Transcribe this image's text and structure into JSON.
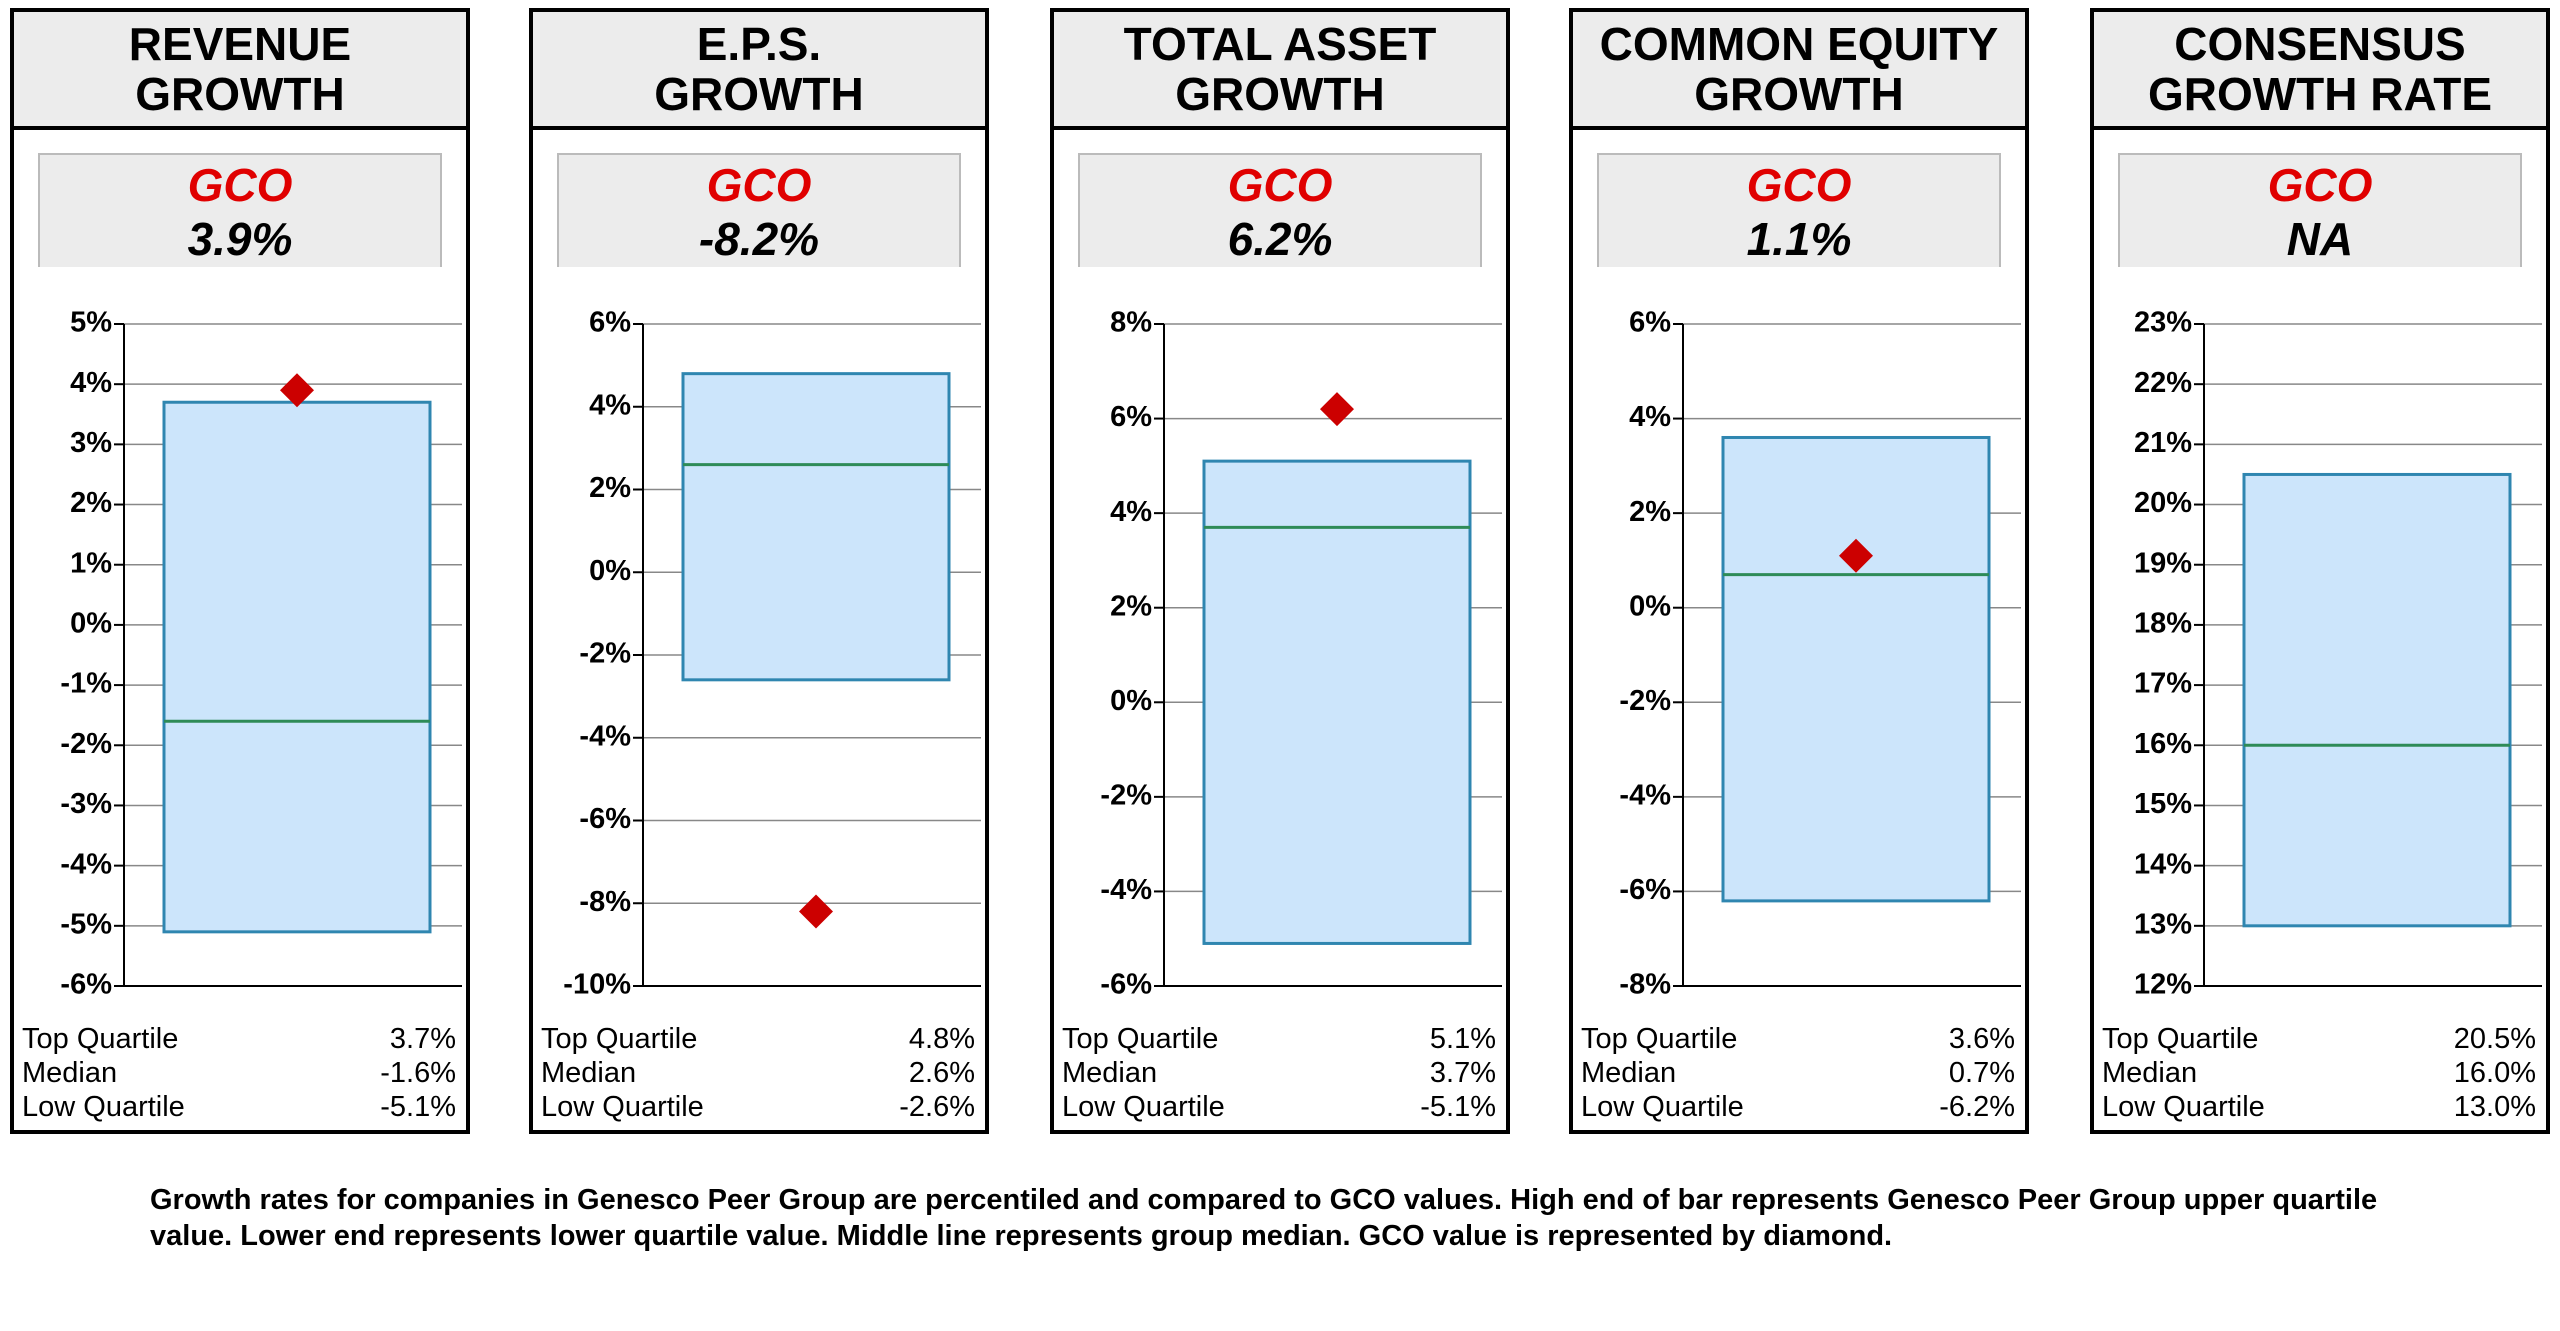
{
  "chart_data": [
    {
      "type": "box",
      "title": "REVENUE\nGROWTH",
      "company": "GCO",
      "value": 3.9,
      "value_label": "3.9%",
      "ylim": [
        -6,
        5
      ],
      "yticks": [
        {
          "value": -6,
          "label": "-6%"
        },
        {
          "value": -5,
          "label": "-5%"
        },
        {
          "value": -4,
          "label": "-4%"
        },
        {
          "value": -3,
          "label": "-3%"
        },
        {
          "value": -2,
          "label": "-2%"
        },
        {
          "value": -1,
          "label": "-1%"
        },
        {
          "value": 0,
          "label": "0%"
        },
        {
          "value": 1,
          "label": "1%"
        },
        {
          "value": 2,
          "label": "2%"
        },
        {
          "value": 3,
          "label": "3%"
        },
        {
          "value": 4,
          "label": "4%"
        },
        {
          "value": 5,
          "label": "5%"
        }
      ],
      "stats": [
        {
          "label": "Top Quartile",
          "value": 3.7,
          "value_label": "3.7%"
        },
        {
          "label": "Median",
          "value": -1.6,
          "value_label": "-1.6%"
        },
        {
          "label": "Low Quartile",
          "value": -5.1,
          "value_label": "-5.1%"
        }
      ]
    },
    {
      "type": "box",
      "title": "E.P.S.\nGROWTH",
      "company": "GCO",
      "value": -8.2,
      "value_label": "-8.2%",
      "ylim": [
        -10,
        6
      ],
      "yticks": [
        {
          "value": -10,
          "label": "-10%"
        },
        {
          "value": -8,
          "label": "-8%"
        },
        {
          "value": -6,
          "label": "-6%"
        },
        {
          "value": -4,
          "label": "-4%"
        },
        {
          "value": -2,
          "label": "-2%"
        },
        {
          "value": 0,
          "label": "0%"
        },
        {
          "value": 2,
          "label": "2%"
        },
        {
          "value": 4,
          "label": "4%"
        },
        {
          "value": 6,
          "label": "6%"
        }
      ],
      "stats": [
        {
          "label": "Top Quartile",
          "value": 4.8,
          "value_label": "4.8%"
        },
        {
          "label": "Median",
          "value": 2.6,
          "value_label": "2.6%"
        },
        {
          "label": "Low Quartile",
          "value": -2.6,
          "value_label": "-2.6%"
        }
      ]
    },
    {
      "type": "box",
      "title": "TOTAL ASSET\nGROWTH",
      "company": "GCO",
      "value": 6.2,
      "value_label": "6.2%",
      "ylim": [
        -6,
        8
      ],
      "yticks": [
        {
          "value": -6,
          "label": "-6%"
        },
        {
          "value": -4,
          "label": "-4%"
        },
        {
          "value": -2,
          "label": "-2%"
        },
        {
          "value": 0,
          "label": "0%"
        },
        {
          "value": 2,
          "label": "2%"
        },
        {
          "value": 4,
          "label": "4%"
        },
        {
          "value": 6,
          "label": "6%"
        },
        {
          "value": 8,
          "label": "8%"
        }
      ],
      "stats": [
        {
          "label": "Top Quartile",
          "value": 5.1,
          "value_label": "5.1%"
        },
        {
          "label": "Median",
          "value": 3.7,
          "value_label": "3.7%"
        },
        {
          "label": "Low Quartile",
          "value": -5.1,
          "value_label": "-5.1%"
        }
      ]
    },
    {
      "type": "box",
      "title": "COMMON EQUITY\nGROWTH",
      "company": "GCO",
      "value": 1.1,
      "value_label": "1.1%",
      "ylim": [
        -8,
        6
      ],
      "yticks": [
        {
          "value": -8,
          "label": "-8%"
        },
        {
          "value": -6,
          "label": "-6%"
        },
        {
          "value": -4,
          "label": "-4%"
        },
        {
          "value": -2,
          "label": "-2%"
        },
        {
          "value": 0,
          "label": "0%"
        },
        {
          "value": 2,
          "label": "2%"
        },
        {
          "value": 4,
          "label": "4%"
        },
        {
          "value": 6,
          "label": "6%"
        }
      ],
      "stats": [
        {
          "label": "Top Quartile",
          "value": 3.6,
          "value_label": "3.6%"
        },
        {
          "label": "Median",
          "value": 0.7,
          "value_label": "0.7%"
        },
        {
          "label": "Low Quartile",
          "value": -6.2,
          "value_label": "-6.2%"
        }
      ]
    },
    {
      "type": "box",
      "title": "CONSENSUS\nGROWTH RATE",
      "company": "GCO",
      "value": null,
      "value_label": "NA",
      "ylim": [
        12,
        23
      ],
      "yticks": [
        {
          "value": 12,
          "label": "12%"
        },
        {
          "value": 13,
          "label": "13%"
        },
        {
          "value": 14,
          "label": "14%"
        },
        {
          "value": 15,
          "label": "15%"
        },
        {
          "value": 16,
          "label": "16%"
        },
        {
          "value": 17,
          "label": "17%"
        },
        {
          "value": 18,
          "label": "18%"
        },
        {
          "value": 19,
          "label": "19%"
        },
        {
          "value": 20,
          "label": "20%"
        },
        {
          "value": 21,
          "label": "21%"
        },
        {
          "value": 22,
          "label": "22%"
        },
        {
          "value": 23,
          "label": "23%"
        }
      ],
      "stats": [
        {
          "label": "Top Quartile",
          "value": 20.5,
          "value_label": "20.5%"
        },
        {
          "label": "Median",
          "value": 16.0,
          "value_label": "16.0%"
        },
        {
          "label": "Low Quartile",
          "value": 13.0,
          "value_label": "13.0%"
        }
      ]
    }
  ],
  "footnote": "Growth rates for companies in Genesco Peer Group are percentiled and compared to GCO values. High end of bar represents Genesco Peer Group upper quartile value. Lower end represents lower quartile value. Middle line represents group median. GCO value is represented by diamond."
}
